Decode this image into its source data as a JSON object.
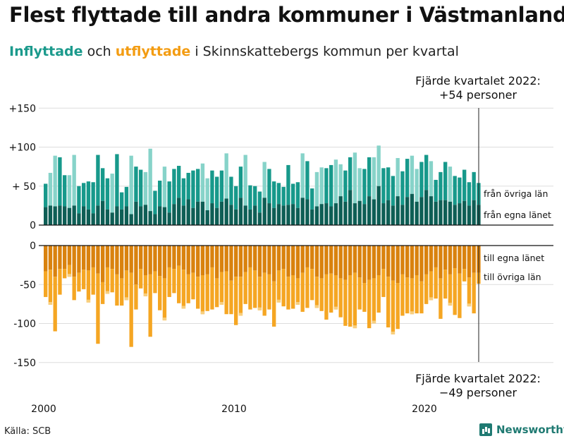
{
  "title": "Flest flyttade till andra kommuner i Västmanland",
  "subtitle": {
    "in_word": "Inflyttade",
    "and_word": " och ",
    "out_word": "utflyttade",
    "rest": " i Skinnskattebergs kommun per kvartal"
  },
  "source": "Källa: SCB",
  "brand": "Newsworthy",
  "colors": {
    "in_local": "#0e5e55",
    "in_other": "#17998b",
    "in_other_hi": "#87d3c9",
    "out_local": "#d9820e",
    "out_other": "#f5a623",
    "out_other_hi": "#f8cf7e",
    "axis": "#111111",
    "grid": "#dddddd"
  },
  "chart_data": {
    "type": "bar",
    "stacked": true,
    "diverging": true,
    "period": "quarter",
    "start": "2000 Q1",
    "end": "2022 Q4",
    "x_ticks": [
      "2000",
      "2010",
      "2020"
    ],
    "y_ticks_in": [
      "+150",
      "+100",
      "+ 50",
      "0"
    ],
    "y_ticks_out": [
      "0",
      "-50",
      "-100",
      "-150"
    ],
    "y_tick_values_in": [
      150,
      100,
      50,
      0
    ],
    "y_tick_values_out": [
      0,
      -50,
      -100,
      -150
    ],
    "ylim_in": [
      0,
      150
    ],
    "ylim_out": [
      -150,
      0
    ],
    "series": [
      {
        "name": "från egna länet",
        "group": "in",
        "values": [
          23,
          25,
          24,
          25,
          24,
          22,
          25,
          15,
          24,
          20,
          15,
          25,
          31,
          20,
          16,
          24,
          20,
          24,
          14,
          30,
          24,
          26,
          18,
          14,
          24,
          23,
          16,
          27,
          35,
          25,
          33,
          22,
          30,
          30,
          19,
          28,
          22,
          30,
          34,
          26,
          20,
          35,
          25,
          20,
          25,
          16,
          35,
          28,
          22,
          27,
          25,
          26,
          27,
          22,
          35,
          33,
          20,
          24,
          27,
          28,
          24,
          28,
          37,
          30,
          45,
          28,
          31,
          27,
          37,
          33,
          50,
          28,
          32,
          25,
          37,
          26,
          36,
          40,
          30,
          36,
          45,
          37,
          30,
          32,
          32,
          30,
          26,
          28,
          31,
          25,
          32,
          26
        ]
      },
      {
        "name": "från övriga län",
        "group": "in",
        "values": [
          30,
          42,
          65,
          62,
          40,
          42,
          65,
          35,
          30,
          36,
          40,
          65,
          42,
          40,
          50,
          67,
          22,
          25,
          75,
          45,
          47,
          42,
          80,
          30,
          33,
          52,
          40,
          45,
          41,
          35,
          34,
          48,
          42,
          49,
          41,
          42,
          40,
          40,
          58,
          36,
          30,
          40,
          65,
          31,
          25,
          27,
          46,
          44,
          34,
          27,
          24,
          51,
          26,
          33,
          57,
          49,
          27,
          44,
          47,
          45,
          53,
          56,
          41,
          40,
          42,
          65,
          42,
          45,
          50,
          54,
          52,
          45,
          42,
          38,
          49,
          43,
          49,
          49,
          42,
          45,
          45,
          45,
          28,
          36,
          49,
          45,
          37,
          33,
          40,
          30,
          36,
          28
        ]
      },
      {
        "name": "till egna länet",
        "group": "out",
        "values": [
          -33,
          -31,
          -40,
          -30,
          -30,
          -25,
          -40,
          -35,
          -31,
          -32,
          -28,
          -36,
          -47,
          -28,
          -30,
          -37,
          -42,
          -32,
          -35,
          -50,
          -30,
          -38,
          -37,
          -33,
          -39,
          -42,
          -28,
          -30,
          -26,
          -31,
          -37,
          -35,
          -40,
          -38,
          -37,
          -28,
          -42,
          -34,
          -33,
          -45,
          -40,
          -40,
          -34,
          -28,
          -32,
          -40,
          -35,
          -37,
          -46,
          -32,
          -30,
          -40,
          -38,
          -42,
          -35,
          -28,
          -30,
          -40,
          -42,
          -37,
          -36,
          -38,
          -42,
          -44,
          -38,
          -35,
          -41,
          -48,
          -44,
          -42,
          -38,
          -30,
          -40,
          -45,
          -48,
          -37,
          -41,
          -42,
          -38,
          -46,
          -37,
          -33,
          -28,
          -42,
          -31,
          -37,
          -29,
          -36,
          -30,
          -41,
          -35,
          -35
        ]
      },
      {
        "name": "till övriga län",
        "group": "out",
        "values": [
          -33,
          -45,
          -70,
          -33,
          -12,
          -15,
          -30,
          -24,
          -25,
          -41,
          -35,
          -90,
          -28,
          -34,
          -30,
          -40,
          -35,
          -38,
          -95,
          -32,
          -25,
          -27,
          -80,
          -28,
          -44,
          -54,
          -38,
          -31,
          -48,
          -50,
          -37,
          -34,
          -41,
          -50,
          -47,
          -54,
          -37,
          -42,
          -55,
          -43,
          -62,
          -50,
          -41,
          -54,
          -48,
          -43,
          -55,
          -45,
          -58,
          -41,
          -48,
          -42,
          -43,
          -34,
          -50,
          -52,
          -40,
          -40,
          -42,
          -58,
          -50,
          -44,
          -50,
          -59,
          -66,
          -71,
          -41,
          -37,
          -62,
          -58,
          -48,
          -36,
          -65,
          -69,
          -59,
          -53,
          -46,
          -46,
          -49,
          -41,
          -38,
          -37,
          -40,
          -52,
          -37,
          -40,
          -60,
          -57,
          -16,
          -37,
          -52,
          -14
        ]
      }
    ],
    "series_labels": [
      "från övriga län",
      "från egna länet",
      "till egna länet",
      "till övriga län"
    ],
    "annotation_top": [
      "Fjärde kvartalet 2022:",
      "+54 personer"
    ],
    "annotation_bottom": [
      "Fjärde kvartalet 2022:",
      "−49 personer"
    ]
  }
}
